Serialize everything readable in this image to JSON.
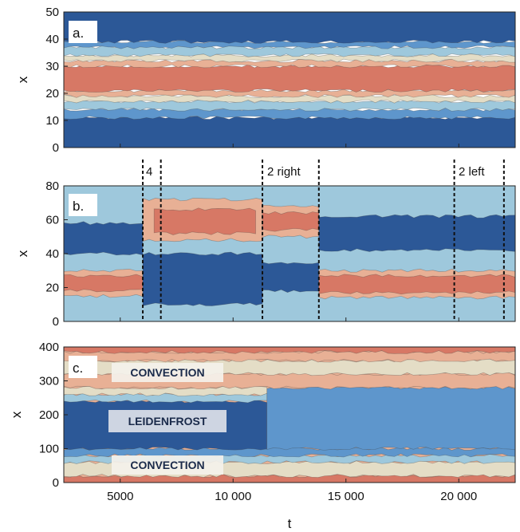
{
  "chart_data": {
    "type": "heatmap",
    "xlabel": "t",
    "xlim": [
      2500,
      22500
    ],
    "xticks": [
      5000,
      10000,
      15000,
      20000
    ],
    "xtick_labels": [
      "5000",
      "10 000",
      "15 000",
      "20 000"
    ],
    "colors": {
      "deep_blue": "#2c5897",
      "mid_blue": "#5e96cc",
      "light_blue": "#9ec8dc",
      "pale": "#e4ddc6",
      "peach": "#e8b095",
      "salmon": "#d77865",
      "dark_red": "#8a2a2a"
    },
    "panels": [
      {
        "label": "a.",
        "ylabel": "x",
        "ylim": [
          0,
          50
        ],
        "yticks": [
          "0",
          "10",
          "20",
          "30",
          "40",
          "50"
        ],
        "bands": [
          {
            "y0": 0,
            "y1": 11,
            "color": "deep_blue"
          },
          {
            "y0": 11,
            "y1": 14,
            "color": "mid_blue"
          },
          {
            "y0": 14,
            "y1": 17,
            "color": "light_blue"
          },
          {
            "y0": 17,
            "y1": 19,
            "color": "pale"
          },
          {
            "y0": 19,
            "y1": 21,
            "color": "peach"
          },
          {
            "y0": 21,
            "y1": 30,
            "color": "salmon"
          },
          {
            "y0": 30,
            "y1": 32,
            "color": "peach"
          },
          {
            "y0": 32,
            "y1": 34,
            "color": "pale"
          },
          {
            "y0": 34,
            "y1": 37,
            "color": "light_blue"
          },
          {
            "y0": 37,
            "y1": 39,
            "color": "mid_blue"
          },
          {
            "y0": 39,
            "y1": 50,
            "color": "deep_blue"
          }
        ],
        "annotations": []
      },
      {
        "label": "b.",
        "ylabel": "x",
        "ylim": [
          0,
          80
        ],
        "yticks": [
          "0",
          "20",
          "40",
          "60",
          "80"
        ],
        "bands": [
          {
            "y0": 0,
            "y1": 80,
            "color": "light_blue"
          },
          {
            "y0": 15,
            "y1": 30,
            "color": "peach",
            "t0": 2500,
            "t1": 6000
          },
          {
            "y0": 18,
            "y1": 27,
            "color": "salmon",
            "t0": 2500,
            "t1": 6000
          },
          {
            "y0": 40,
            "y1": 58,
            "color": "deep_blue",
            "t0": 2500,
            "t1": 6000
          },
          {
            "y0": 48,
            "y1": 72,
            "color": "peach",
            "t0": 6000,
            "t1": 11300
          },
          {
            "y0": 52,
            "y1": 66,
            "color": "salmon",
            "t0": 6500,
            "t1": 11000
          },
          {
            "y0": 10,
            "y1": 40,
            "color": "deep_blue",
            "t0": 6000,
            "t1": 11300
          },
          {
            "y0": 50,
            "y1": 68,
            "color": "peach",
            "t0": 11300,
            "t1": 13800
          },
          {
            "y0": 54,
            "y1": 64,
            "color": "salmon",
            "t0": 11300,
            "t1": 13800
          },
          {
            "y0": 18,
            "y1": 34,
            "color": "deep_blue",
            "t0": 11300,
            "t1": 13800
          },
          {
            "y0": 42,
            "y1": 62,
            "color": "deep_blue",
            "t0": 13800,
            "t1": 22500
          },
          {
            "y0": 14,
            "y1": 30,
            "color": "peach",
            "t0": 13800,
            "t1": 22500
          },
          {
            "y0": 17,
            "y1": 27,
            "color": "salmon",
            "t0": 13800,
            "t1": 22500
          }
        ],
        "dashed_lines": [
          6000,
          6800,
          11300,
          13800,
          19800,
          22000
        ],
        "annotations": [
          {
            "text": "4",
            "t": 6200
          },
          {
            "text": "2 right",
            "t": 11500
          },
          {
            "text": "2 left",
            "t": 20000
          }
        ]
      },
      {
        "label": "c.",
        "ylabel": "x",
        "ylim": [
          0,
          400
        ],
        "yticks": [
          "0",
          "100",
          "200",
          "300",
          "400"
        ],
        "bands": [
          {
            "y0": 0,
            "y1": 400,
            "color": "peach"
          },
          {
            "y0": 0,
            "y1": 20,
            "color": "salmon"
          },
          {
            "y0": 20,
            "y1": 60,
            "color": "pale"
          },
          {
            "y0": 60,
            "y1": 80,
            "color": "light_blue"
          },
          {
            "y0": 80,
            "y1": 100,
            "color": "mid_blue"
          },
          {
            "y0": 100,
            "y1": 240,
            "color": "deep_blue",
            "t0": 2500,
            "t1": 11500
          },
          {
            "y0": 100,
            "y1": 280,
            "color": "mid_blue",
            "t0": 11500,
            "t1": 22500
          },
          {
            "y0": 240,
            "y1": 260,
            "color": "light_blue",
            "t0": 2500,
            "t1": 11500
          },
          {
            "y0": 260,
            "y1": 280,
            "color": "pale",
            "t0": 2500,
            "t1": 11500
          },
          {
            "y0": 280,
            "y1": 320,
            "color": "peach"
          },
          {
            "y0": 320,
            "y1": 360,
            "color": "pale"
          },
          {
            "y0": 360,
            "y1": 385,
            "color": "peach"
          },
          {
            "y0": 385,
            "y1": 400,
            "color": "salmon"
          }
        ],
        "annotations": [
          {
            "text": "CONVECTION",
            "region": "top"
          },
          {
            "text": "LEIDENFROST",
            "region": "middle"
          },
          {
            "text": "CONVECTION",
            "region": "bottom"
          }
        ]
      }
    ]
  }
}
